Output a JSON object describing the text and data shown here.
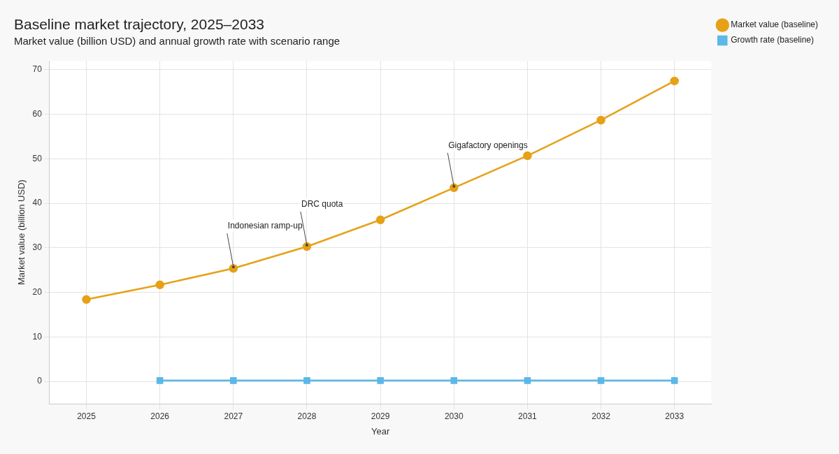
{
  "chart_data": {
    "type": "line",
    "title": "Baseline market trajectory, 2025–2033",
    "subtitle": "Market value (billion USD) and annual growth rate with scenario range",
    "xlabel": "Year",
    "ylabel": "Market value (billion USD)",
    "xlim": [
      2024.5,
      2033.5
    ],
    "xticks": [
      2025,
      2026,
      2027,
      2028,
      2029,
      2030,
      2031,
      2032,
      2033
    ],
    "ylim": [
      -5,
      72
    ],
    "yticks": [
      0,
      10,
      20,
      30,
      40,
      50,
      60,
      70
    ],
    "grid": true,
    "legend": "top right",
    "line_style": "solid",
    "series": [
      {
        "name": "Market value (baseline)",
        "color": "#e6a117",
        "marker": "circle",
        "x": [
          2025,
          2026,
          2027,
          2028,
          2029,
          2030,
          2031,
          2032,
          2033
        ],
        "values": [
          18.4,
          21.7,
          25.4,
          30.3,
          36.3,
          43.5,
          50.7,
          58.7,
          67.5
        ]
      },
      {
        "name": "Growth rate (baseline)",
        "color": "#5bb8e8",
        "marker": "square",
        "x": [
          2026,
          2027,
          2028,
          2029,
          2030,
          2031,
          2032,
          2033
        ],
        "values": [
          0.2,
          0.2,
          0.2,
          0.2,
          0.2,
          0.2,
          0.2,
          0.2
        ]
      }
    ],
    "annotations": [
      {
        "text": "Indonesian ramp-up",
        "x": 2027,
        "y": 25.4
      },
      {
        "text": "DRC quota",
        "x": 2028,
        "y": 30.3
      },
      {
        "text": "Gigafactory openings",
        "x": 2030,
        "y": 43.5
      }
    ]
  }
}
